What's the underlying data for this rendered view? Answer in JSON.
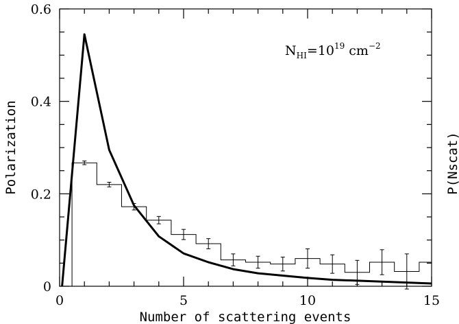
{
  "chart_data": {
    "type": "line",
    "xlabel": "Number of scattering events",
    "ylabel": "Polarization",
    "ylabel_right": "P(Nscat)",
    "xlim": [
      0,
      15
    ],
    "ylim": [
      0,
      0.6
    ],
    "x_ticks": [
      "0",
      "5",
      "10",
      "15"
    ],
    "y_ticks": [
      "0",
      "0.2",
      "0.4",
      "0.6"
    ],
    "annotation": {
      "base": "N",
      "sub": "HI",
      "mid": "=10",
      "sup": "19",
      "unit": " cm",
      "unit_sup": "−2"
    },
    "grid": false,
    "series": [
      {
        "style": "thick-line",
        "x": [
          0.1,
          1,
          2,
          3,
          4,
          5,
          6,
          7,
          8,
          9,
          10,
          11,
          12,
          13,
          14,
          15
        ],
        "y": [
          0.0,
          0.545,
          0.295,
          0.175,
          0.108,
          0.071,
          0.052,
          0.037,
          0.028,
          0.023,
          0.018,
          0.014,
          0.012,
          0.01,
          0.008,
          0.006
        ]
      },
      {
        "style": "histogram",
        "bin_edges": [
          0.5,
          1.5,
          2.5,
          3.5,
          4.5,
          5.5,
          6.5,
          7.5,
          8.5,
          9.5,
          10.5,
          11.5,
          12.5,
          13.5,
          14.5,
          15
        ],
        "values": [
          0.267,
          0.22,
          0.172,
          0.143,
          0.112,
          0.092,
          0.057,
          0.052,
          0.048,
          0.06,
          0.048,
          0.03,
          0.052,
          0.032,
          0.052
        ],
        "errors": [
          0.004,
          0.005,
          0.007,
          0.008,
          0.011,
          0.011,
          0.013,
          0.013,
          0.015,
          0.021,
          0.02,
          0.026,
          0.027,
          0.038,
          0.0
        ]
      }
    ]
  }
}
